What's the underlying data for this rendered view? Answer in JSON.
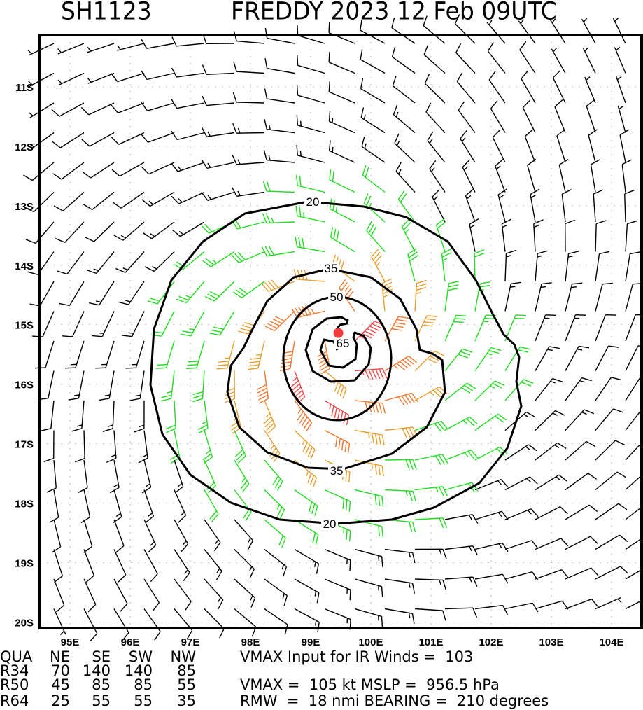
{
  "chart_data": {
    "type": "wind-barb-map",
    "title_id": "SH1123",
    "title_main": "FREDDY 2023 12 Feb 09UTC",
    "x_ticks": [
      "95E",
      "96E",
      "97E",
      "98E",
      "99E",
      "100E",
      "101E",
      "102E",
      "103E",
      "104E"
    ],
    "x_tick_values": [
      95,
      96,
      97,
      98,
      99,
      100,
      101,
      102,
      103,
      104
    ],
    "y_ticks": [
      "11S",
      "12S",
      "13S",
      "14S",
      "15S",
      "16S",
      "17S",
      "18S",
      "19S",
      "20S"
    ],
    "y_tick_values": [
      -11,
      -12,
      -13,
      -14,
      -15,
      -16,
      -17,
      -18,
      -19,
      -20
    ],
    "xlim": [
      94.5,
      104.5
    ],
    "ylim": [
      -20.1,
      -10.13
    ],
    "center": {
      "lon": 99.46,
      "lat": -15.14
    },
    "contour_levels": [
      "20",
      "35",
      "50",
      "65"
    ],
    "contour_labels": {
      "c20a": "20",
      "c20b": "20",
      "c35a": "35",
      "c35b": "35",
      "c50": "50",
      "c65": "65"
    },
    "colors": {
      "lt20": "#000000",
      "c20": "#22dd22",
      "c35": "#e8a030",
      "c50": "#f07830",
      "c65": "#f04848",
      "center": "#f03c3c"
    }
  },
  "table": {
    "header": [
      "QUA",
      "NE",
      "SE",
      "SW",
      "NW"
    ],
    "rows": [
      [
        "R34",
        "70",
        "140",
        "140",
        "85"
      ],
      [
        "R50",
        "45",
        "85",
        "85",
        "55"
      ],
      [
        "R64",
        "25",
        "55",
        "55",
        "35"
      ]
    ]
  },
  "info": {
    "vmax_ir": "VMAX Input for IR Winds =  103",
    "vmax_mslp": "VMAX =  105 kt MSLP =  956.5 hPa",
    "rmw_bearing": "RMW  =  18 nmi BEARING =  210 degrees"
  }
}
